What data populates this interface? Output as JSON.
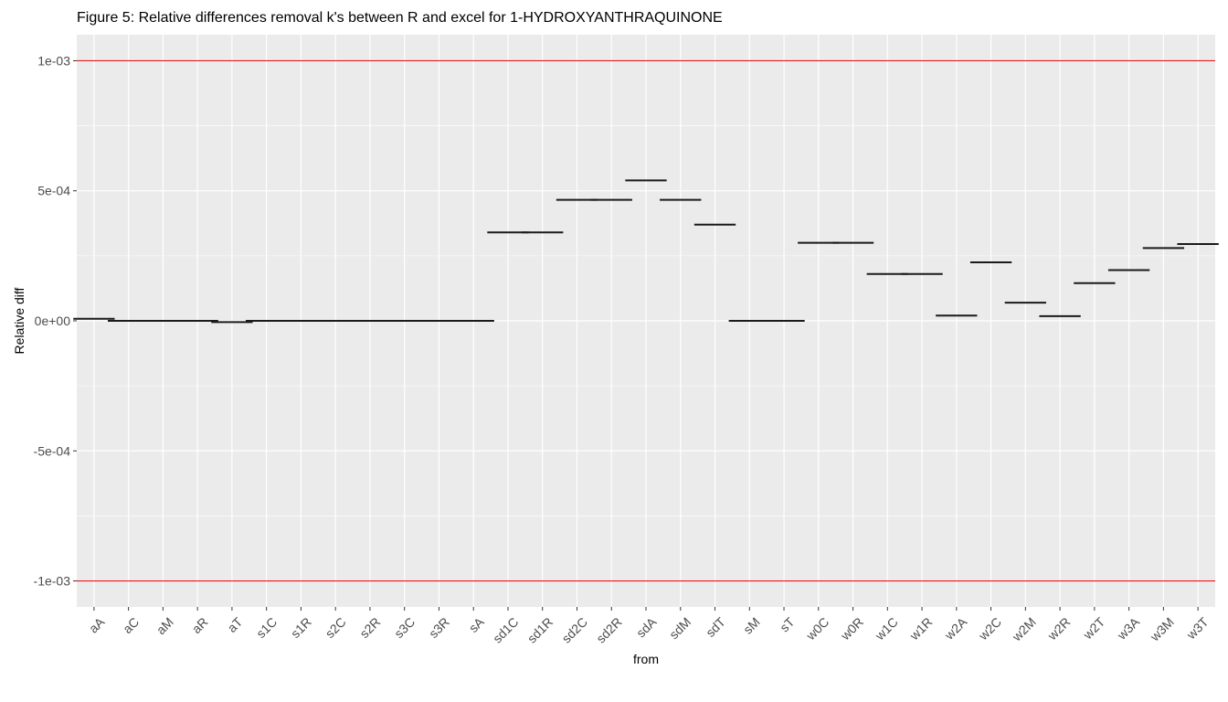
{
  "chart_data": {
    "type": "crossbar",
    "title": "Figure 5: Relative differences removal k's between R and excel for 1-HYDROXYANTHRAQUINONE",
    "xlabel": "from",
    "ylabel": "Relative diff",
    "ylim": [
      -0.0011,
      0.0011
    ],
    "yticks": [
      {
        "value": 0.001,
        "label": "1e-03"
      },
      {
        "value": 0.0005,
        "label": "5e-04"
      },
      {
        "value": 0.0,
        "label": "0e+00"
      },
      {
        "value": -0.0005,
        "label": "-5e-04"
      },
      {
        "value": -0.001,
        "label": "-1e-03"
      }
    ],
    "reference_lines": [
      0.001,
      -0.001
    ],
    "reference_line_color": "#e41a1c",
    "panel_background": "#ebebeb",
    "grid": true,
    "categories": [
      "aA",
      "aC",
      "aM",
      "aR",
      "aT",
      "s1C",
      "s1R",
      "s2C",
      "s2R",
      "s3C",
      "s3R",
      "sA",
      "sd1C",
      "sd1R",
      "sd2C",
      "sd2R",
      "sdA",
      "sdM",
      "sdT",
      "sM",
      "sT",
      "w0C",
      "w0R",
      "w1C",
      "w1R",
      "w2A",
      "w2C",
      "w2M",
      "w2R",
      "w2T",
      "w3A",
      "w3M",
      "w3T"
    ],
    "values": [
      8e-06,
      0.0,
      0.0,
      0.0,
      -5e-06,
      0.0,
      0.0,
      0.0,
      0.0,
      0.0,
      0.0,
      0.0,
      0.00034,
      0.00034,
      0.000465,
      0.000465,
      0.00054,
      0.000465,
      0.00037,
      0.0,
      0.0,
      0.0003,
      0.0003,
      0.00018,
      0.00018,
      2e-05,
      0.000225,
      7e-05,
      1.8e-05,
      0.000145,
      0.000195,
      0.00028,
      0.000295
    ]
  }
}
